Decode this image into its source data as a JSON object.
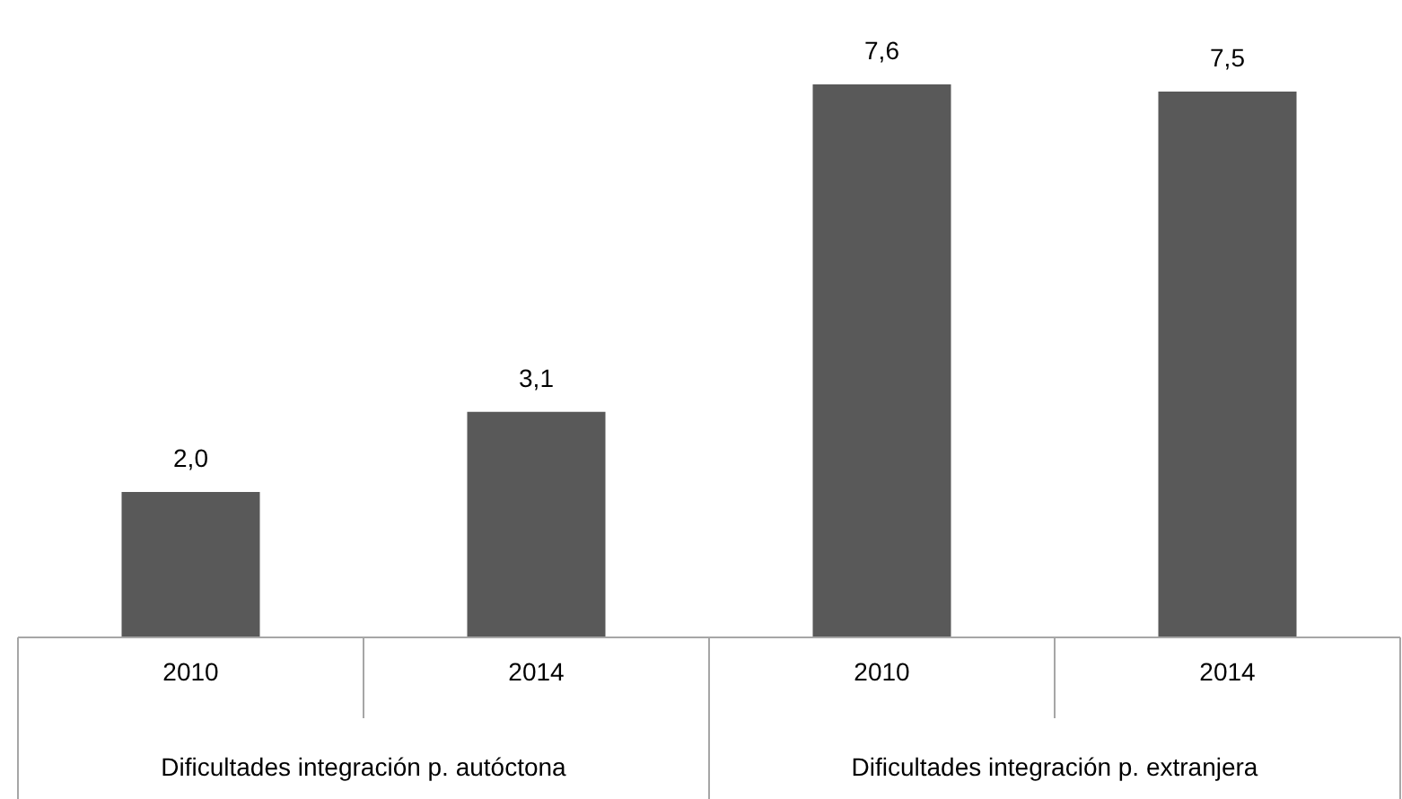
{
  "chart_data": {
    "type": "bar",
    "categories": [
      "2010",
      "2014",
      "2010",
      "2014"
    ],
    "values": [
      2.0,
      3.1,
      7.6,
      7.5
    ],
    "value_labels": [
      "2,0",
      "3,1",
      "7,6",
      "7,5"
    ],
    "color": "#595959",
    "annotations": [
      "Dificultades integración p. autóctona",
      "Dificultades integración p. extranjera"
    ]
  }
}
